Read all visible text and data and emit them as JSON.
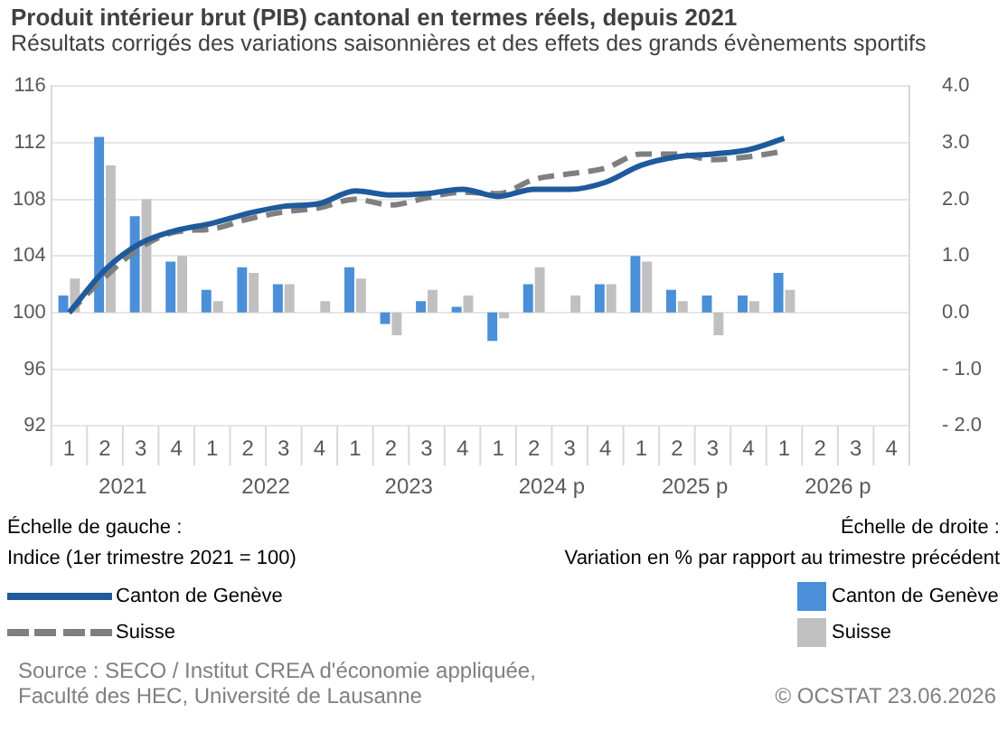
{
  "chart_data": {
    "type": "bar",
    "title": "Produit intérieur brut (PIB) cantonal en termes réels, depuis 2021",
    "subtitle": "Résultats corrigés des variations saisonnières et des effets des grands évènements sportifs",
    "categories": [
      "1",
      "2",
      "3",
      "4",
      "1",
      "2",
      "3",
      "4",
      "1",
      "2",
      "3",
      "4",
      "1",
      "2",
      "3",
      "4",
      "1",
      "2",
      "3",
      "4",
      "1",
      "2",
      "3",
      "4"
    ],
    "annotations": [
      "2021",
      "2022",
      "2023",
      "2024 p",
      "2025 p",
      "2026 p",
      "Échelle de gauche :\nIndice (1er trimestre 2021 = 100)",
      "Échelle de droite :\nVariation en % par rapport au trimestre précédent",
      "Source : SECO / Institut CREA d'économie appliquée,\nFaculté des HEC, Université de Lausanne",
      "© OCSTAT 23.06.2026"
    ],
    "series": [
      {
        "name": "Canton de Genève",
        "type": "bar",
        "axis": "y2",
        "color": "#4a8fd8",
        "values": [
          0.3,
          3.1,
          1.7,
          0.9,
          0.4,
          0.8,
          0.5,
          0.0,
          0.8,
          -0.2,
          0.2,
          0.1,
          -0.5,
          0.5,
          0.0,
          0.5,
          1.0,
          0.4,
          0.3,
          0.3,
          0.7,
          null,
          null,
          null
        ]
      },
      {
        "name": "Suisse",
        "type": "bar",
        "axis": "y2",
        "color": "#c0c0c0",
        "values": [
          0.6,
          2.6,
          2.0,
          1.0,
          0.2,
          0.7,
          0.5,
          0.2,
          0.6,
          -0.4,
          0.4,
          0.3,
          -0.1,
          0.8,
          0.3,
          0.5,
          0.9,
          0.2,
          -0.4,
          0.2,
          0.4,
          null,
          null,
          null
        ]
      },
      {
        "name": "Canton de Genève",
        "type": "line",
        "axis": "y",
        "color": "#1f5a9c",
        "line_style": "solid",
        "values": [
          100,
          103.0,
          104.9,
          105.8,
          106.3,
          107.0,
          107.5,
          107.7,
          108.6,
          108.3,
          108.4,
          108.7,
          108.2,
          108.7,
          108.7,
          109.2,
          110.4,
          111.0,
          111.2,
          111.5,
          112.3,
          null,
          null,
          null
        ]
      },
      {
        "name": "Suisse",
        "type": "line",
        "axis": "y",
        "color": "#7f7f7f",
        "line_style": "dashed",
        "values": [
          100,
          102.5,
          104.6,
          105.7,
          105.9,
          106.6,
          107.1,
          107.4,
          108.0,
          107.6,
          108.1,
          108.5,
          108.4,
          109.4,
          109.8,
          110.2,
          111.2,
          111.2,
          110.8,
          111.0,
          111.4,
          null,
          null,
          null
        ]
      }
    ],
    "ylim": [
      92,
      116
    ],
    "yticks": [
      92,
      96,
      100,
      104,
      108,
      112,
      116
    ],
    "y2lim": [
      -2,
      4
    ],
    "y2ticks": [
      {
        "value": -2,
        "label": "- 2.0"
      },
      {
        "value": -1,
        "label": "- 1.0"
      },
      {
        "value": 0,
        "label": "0.0"
      },
      {
        "value": 1,
        "label": "1.0"
      },
      {
        "value": 2,
        "label": "2.0"
      },
      {
        "value": 3,
        "label": "3.0"
      },
      {
        "value": 4,
        "label": "4.0"
      }
    ],
    "grid": "y",
    "legend": "bottom",
    "marker": "none"
  }
}
